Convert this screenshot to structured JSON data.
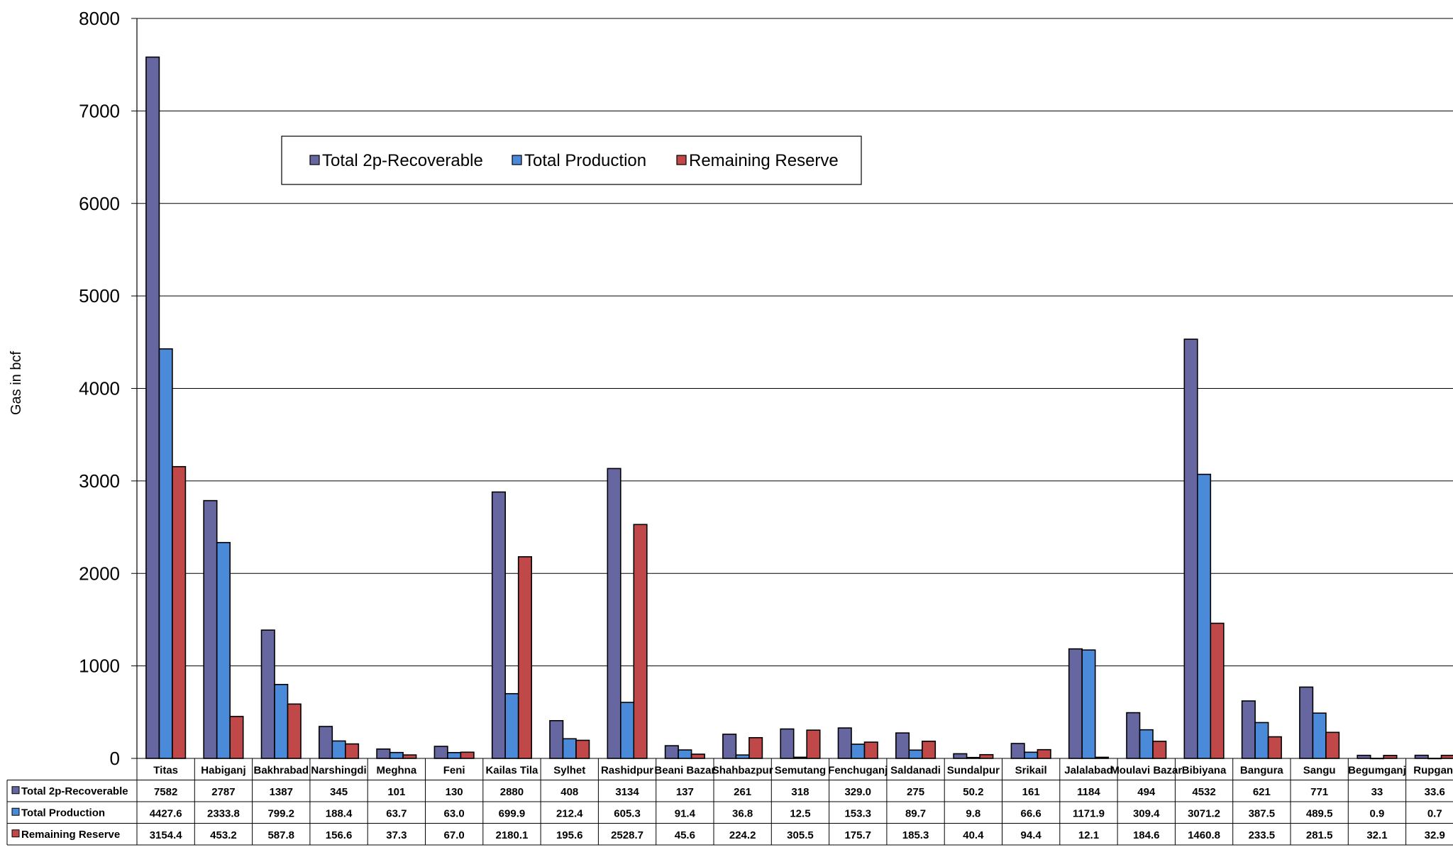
{
  "chart_data": {
    "type": "bar",
    "title": "",
    "xlabel": "",
    "ylabel": "Gas in bcf",
    "ylim": [
      0,
      8000
    ],
    "yticks": [
      0,
      1000,
      2000,
      3000,
      4000,
      5000,
      6000,
      7000,
      8000
    ],
    "grid": true,
    "legend_position": "top-center",
    "categories": [
      "Titas",
      "Habiganj",
      "Bakhrabad",
      "Narshingdi",
      "Meghna",
      "Feni",
      "Kailas Tila",
      "Sylhet",
      "Rashidpur",
      "Beani Bazar",
      "Shahbazpur",
      "Semutang",
      "Fenchuganj",
      "Saldanadi",
      "Sundalpur",
      "Srikail",
      "Jalalabad",
      "Moulavi Bazar",
      "Bibiyana",
      "Bangura",
      "Sangu",
      "Begumganj",
      "Rupganj"
    ],
    "series": [
      {
        "name": "Total 2p-Recoverable",
        "color": "#6666a0",
        "values": [
          7582,
          2787,
          1387,
          345,
          101,
          130,
          2880,
          408,
          3134,
          137,
          261,
          318,
          329.0,
          275,
          50.2,
          161,
          1184,
          494,
          4532,
          621,
          771,
          33,
          33.6
        ],
        "labels": [
          "7582",
          "2787",
          "1387",
          "345",
          "101",
          "130",
          "2880",
          "408",
          "3134",
          "137",
          "261",
          "318",
          "329.0",
          "275",
          "50.2",
          "161",
          "1184",
          "494",
          "4532",
          "621",
          "771",
          "33",
          "33.6"
        ]
      },
      {
        "name": "Total Production",
        "color": "#4a8ad8",
        "values": [
          4427.6,
          2333.8,
          799.2,
          188.4,
          63.7,
          63.0,
          699.9,
          212.4,
          605.3,
          91.4,
          36.8,
          12.5,
          153.3,
          89.7,
          9.8,
          66.6,
          1171.9,
          309.4,
          3071.2,
          387.5,
          489.5,
          0.9,
          0.7
        ],
        "labels": [
          "4427.6",
          "2333.8",
          "799.2",
          "188.4",
          "63.7",
          "63.0",
          "699.9",
          "212.4",
          "605.3",
          "91.4",
          "36.8",
          "12.5",
          "153.3",
          "89.7",
          "9.8",
          "66.6",
          "1171.9",
          "309.4",
          "3071.2",
          "387.5",
          "489.5",
          "0.9",
          "0.7"
        ]
      },
      {
        "name": "Remaining Reserve",
        "color": "#c04848",
        "values": [
          3154.4,
          453.2,
          587.8,
          156.6,
          37.3,
          67.0,
          2180.1,
          195.6,
          2528.7,
          45.6,
          224.2,
          305.5,
          175.7,
          185.3,
          40.4,
          94.4,
          12.1,
          184.6,
          1460.8,
          233.5,
          281.5,
          32.1,
          32.9
        ],
        "labels": [
          "3154.4",
          "453.2",
          "587.8",
          "156.6",
          "37.3",
          "67.0",
          "2180.1",
          "195.6",
          "2528.7",
          "45.6",
          "224.2",
          "305.5",
          "175.7",
          "185.3",
          "40.4",
          "94.4",
          "12.1",
          "184.6",
          "1460.8",
          "233.5",
          "281.5",
          "32.1",
          "32.9"
        ]
      }
    ]
  }
}
